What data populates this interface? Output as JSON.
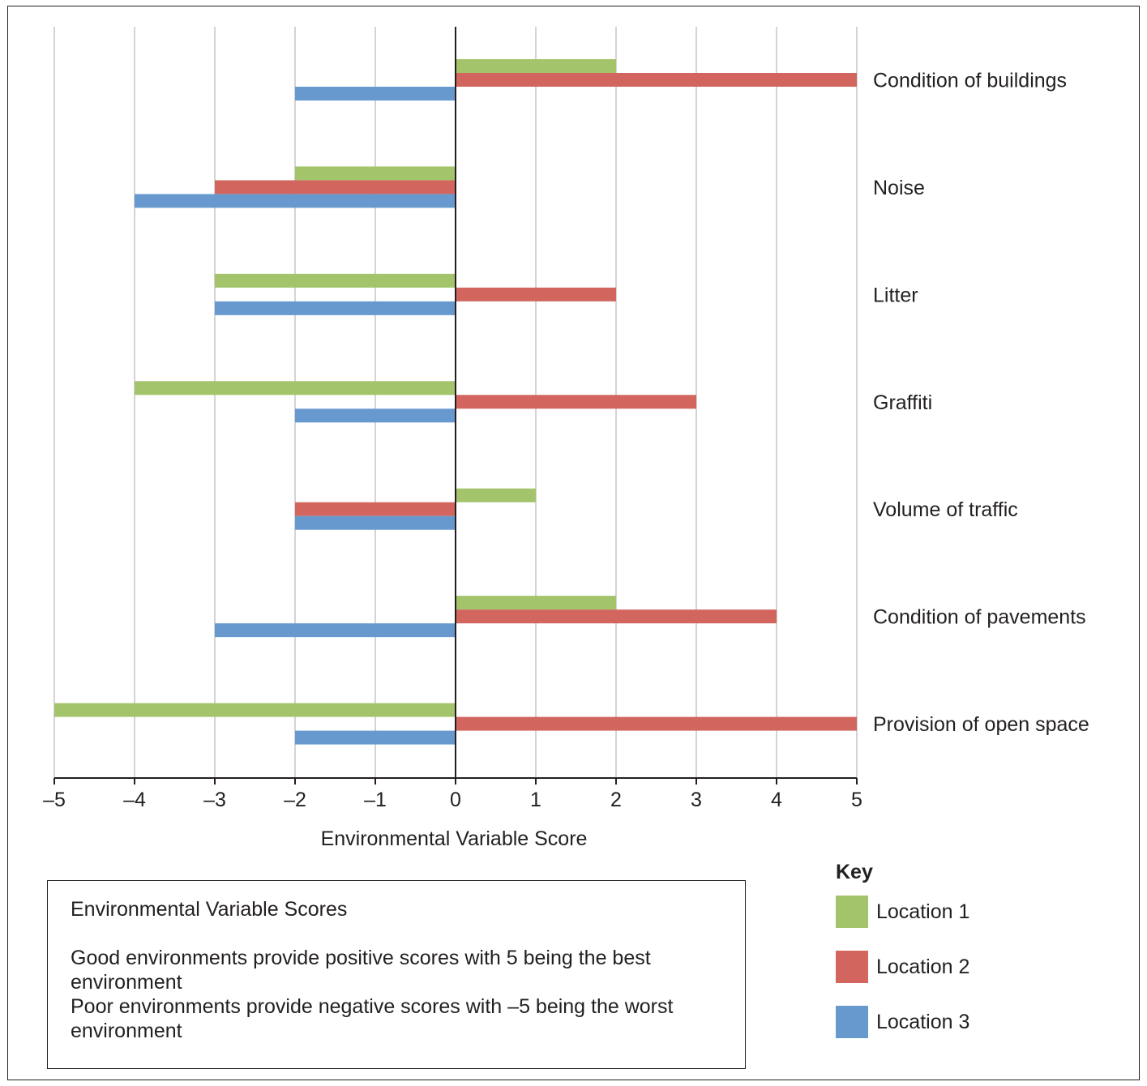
{
  "chart_data": {
    "type": "bar",
    "orientation": "horizontal",
    "categories": [
      "Condition of buildings",
      "Noise",
      "Litter",
      "Graffiti",
      "Volume of traffic",
      "Condition of pavements",
      "Provision of open space"
    ],
    "series": [
      {
        "name": "Location 1",
        "color": "#a4c46b",
        "values": [
          2,
          -2,
          -3,
          -4,
          1,
          2,
          -5
        ]
      },
      {
        "name": "Location 2",
        "color": "#d2665f",
        "values": [
          5,
          -3,
          2,
          3,
          -2,
          4,
          5
        ]
      },
      {
        "name": "Location 3",
        "color": "#6799ce",
        "values": [
          -2,
          -4,
          -3,
          -2,
          -2,
          -3,
          -2
        ]
      }
    ],
    "xlabel": "Environmental Variable Score",
    "xlim": [
      -5,
      5
    ],
    "xticks": [
      "–5",
      "–4",
      "–3",
      "–2",
      "–1",
      "0",
      "1",
      "2",
      "3",
      "4",
      "5"
    ],
    "grid": "vertical",
    "legend_position": "bottom-right"
  },
  "key": {
    "title": "Key",
    "items": [
      "Location 1",
      "Location 2",
      "Location 3"
    ]
  },
  "note": {
    "title": "Environmental Variable Scores",
    "line1": "Good environments provide positive scores with 5 being the best environment",
    "line2": "Poor environments provide negative scores with –5 being the worst environment"
  }
}
